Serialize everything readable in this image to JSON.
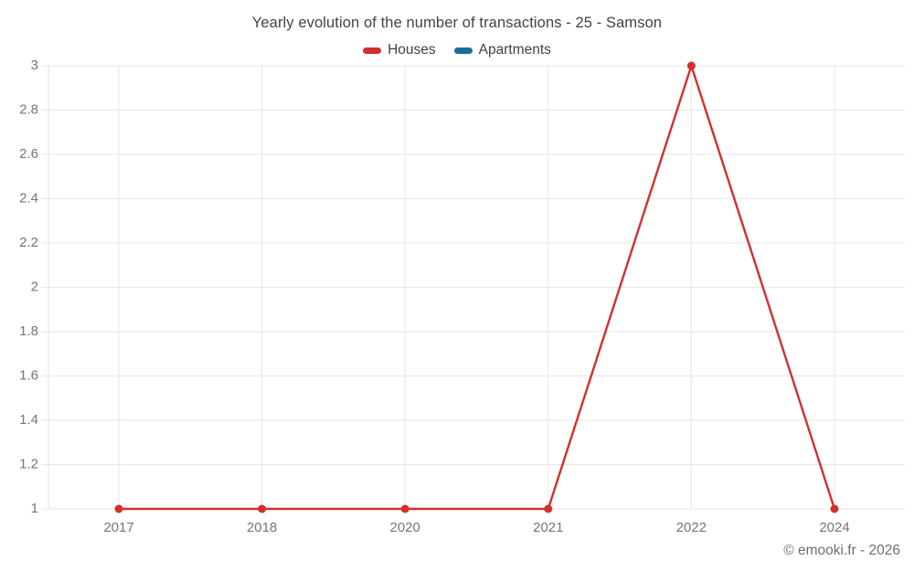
{
  "title": "Yearly evolution of the number of transactions - 25 - Samson",
  "footer": "© emooki.fr - 2026",
  "chart_data": {
    "type": "line",
    "title": "Yearly evolution of the number of transactions - 25 - Samson",
    "categories": [
      "2017",
      "2018",
      "2020",
      "2021",
      "2022",
      "2024"
    ],
    "series": [
      {
        "name": "Houses",
        "color": "#d32f2f",
        "values": [
          1,
          1,
          1,
          1,
          3,
          1
        ]
      },
      {
        "name": "Apartments",
        "color": "#1a6d9e",
        "values": []
      }
    ],
    "xlabel": "",
    "ylabel": "",
    "ylim": [
      1,
      3
    ],
    "y_ticks": [
      1,
      1.2,
      1.4,
      1.6,
      1.8,
      2,
      2.2,
      2.4,
      2.6,
      2.8,
      3
    ],
    "y_tick_labels": [
      "1",
      "1.2",
      "1.4",
      "1.6",
      "1.8",
      "2",
      "2.2",
      "2.4",
      "2.6",
      "2.8",
      "3"
    ],
    "grid": true,
    "legend_position": "top",
    "marker": "circle",
    "colors": {
      "grid": "#e6e6e6",
      "axis": "#e0e0e0",
      "title_text": "#424242",
      "tick_text": "#757575",
      "footer_text": "#6e6e6e"
    }
  }
}
